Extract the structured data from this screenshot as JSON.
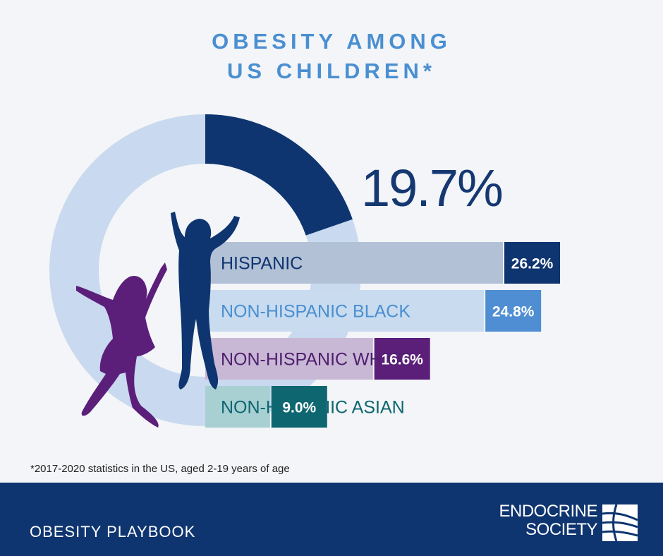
{
  "title_line1": "OBESITY AMONG",
  "title_line2": "US CHILDREN*",
  "overall_label": "19.7%",
  "chart_data": {
    "type": "bar",
    "title": "Obesity among US children*",
    "overall": {
      "value": 19.7,
      "label": "19.7%"
    },
    "categories": [
      "HISPANIC",
      "NON-HISPANIC BLACK",
      "NON-HISPANIC WHITE",
      "NON-HISPANIC ASIAN"
    ],
    "values": [
      26.2,
      24.8,
      16.6,
      9.0
    ],
    "value_labels": [
      "26.2%",
      "24.8%",
      "16.6%",
      "9.0%"
    ],
    "colors": {
      "bar_light": [
        "#b2c1d6",
        "#c8dbef",
        "#c9b8d5",
        "#a8d0d3"
      ],
      "value_box": [
        "#0f3570",
        "#4f8ed2",
        "#5b1f7a",
        "#0e6670"
      ],
      "label_text": [
        "#0f3570",
        "#4a8fd1",
        "#4f1f6f",
        "#0e6670"
      ],
      "donut_track": "#c9d9ef",
      "donut_fill": "#0f3570"
    }
  },
  "footnote": "*2017-2020 statistics in the US, aged 2-19 years of age",
  "footer": {
    "title": "OBESITY PLAYBOOK",
    "logo_line1": "ENDOCRINE",
    "logo_line2": "SOCIETY"
  }
}
